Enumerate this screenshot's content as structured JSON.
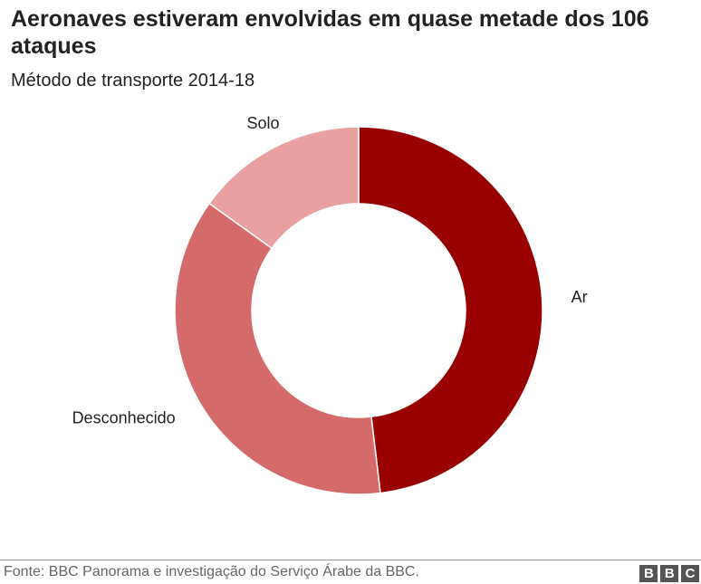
{
  "chart_data": {
    "type": "donut",
    "title": "Aeronaves estiveram envolvidas em quase metade dos 106 ataques",
    "subtitle": "Método de transporte 2014-18",
    "categories": [
      "Ar",
      "Desconhecido",
      "Solo"
    ],
    "values": [
      51,
      39,
      16
    ],
    "colors": [
      "#990000",
      "#d46a6a",
      "#e8a0a0"
    ],
    "source": "Fonte: BBC Panorama e investigação do Serviço Árabe da BBC.",
    "logo": "BBC"
  }
}
